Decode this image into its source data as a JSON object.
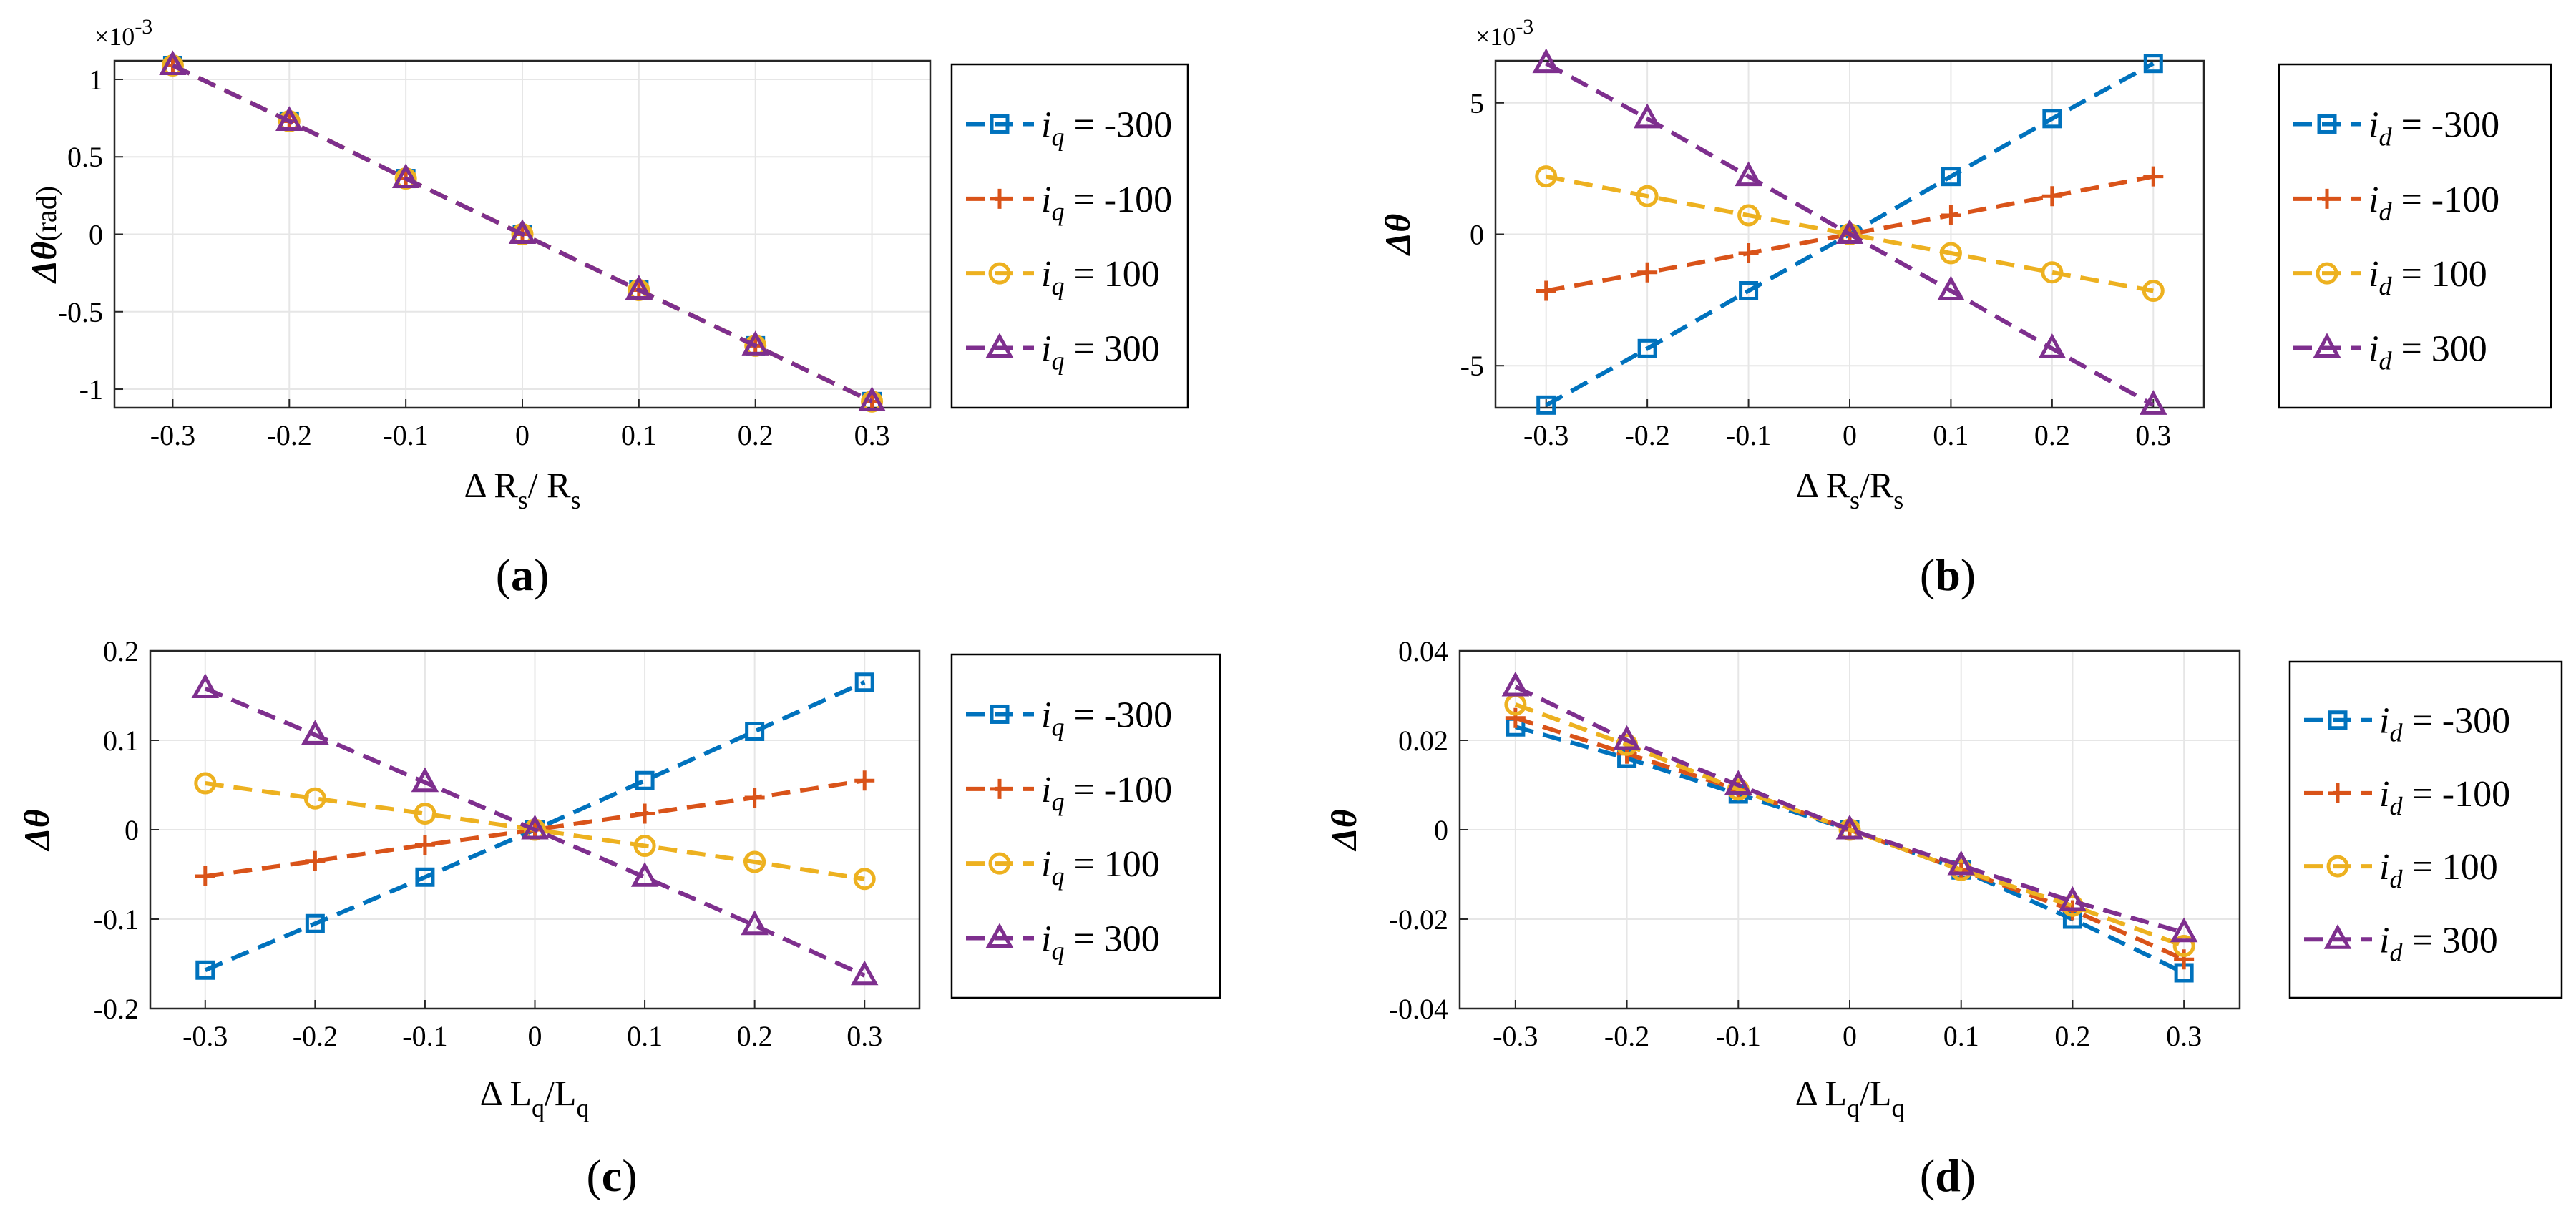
{
  "colors": {
    "blue": "#0072BD",
    "orange": "#D95319",
    "yellow": "#EDB120",
    "purple": "#7E2F8E",
    "grid": "#E6E6E6",
    "axis": "#262626"
  },
  "chart_data": [
    {
      "panel": "a",
      "caption_open": "(",
      "caption_letter": "a",
      "caption_close": ")",
      "type": "line",
      "x": [
        -0.3,
        -0.2,
        -0.1,
        0,
        0.1,
        0.2,
        0.3
      ],
      "xticks": [
        -0.3,
        -0.2,
        -0.1,
        0,
        0.1,
        0.2,
        0.3
      ],
      "xtick_labels": [
        "-0.3",
        "-0.2",
        "-0.1",
        "0",
        "0.1",
        "0.2",
        "0.3"
      ],
      "xlim": [
        -0.35,
        0.35
      ],
      "yticks": [
        -1,
        -0.5,
        0,
        0.5,
        1
      ],
      "ytick_labels": [
        "-1",
        "-0.5",
        "0",
        "0.5",
        "1"
      ],
      "ylim": [
        -1.12,
        1.12
      ],
      "exponent": "×10",
      "exponent_power": "-3",
      "ylabel": "Δθ",
      "ylabel_suffix": "(rad)",
      "xlabel_parts": [
        {
          "t": "Δ R"
        },
        {
          "t": "s",
          "sub": true
        },
        {
          "t": "/ R"
        },
        {
          "t": "s",
          "sub": true
        }
      ],
      "legend_var": "i",
      "legend_sub": "q",
      "series": [
        {
          "name": "i_q = -300",
          "value_label": "-300",
          "color": "blue",
          "marker": "square",
          "values": [
            1.09,
            0.73,
            0.36,
            0,
            -0.36,
            -0.72,
            -1.08
          ]
        },
        {
          "name": "i_q = -100",
          "value_label": "-100",
          "color": "orange",
          "marker": "plus",
          "values": [
            1.09,
            0.73,
            0.36,
            0,
            -0.36,
            -0.72,
            -1.08
          ]
        },
        {
          "name": "i_q = 100",
          "value_label": "100",
          "color": "yellow",
          "marker": "circle",
          "values": [
            1.09,
            0.73,
            0.36,
            0,
            -0.36,
            -0.72,
            -1.08
          ]
        },
        {
          "name": "i_q = 300",
          "value_label": "300",
          "color": "purple",
          "marker": "triangle",
          "values": [
            1.09,
            0.73,
            0.36,
            0,
            -0.36,
            -0.72,
            -1.08
          ]
        }
      ]
    },
    {
      "panel": "b",
      "caption_open": "(",
      "caption_letter": "b",
      "caption_close": ")",
      "type": "line",
      "x": [
        -0.3,
        -0.2,
        -0.1,
        0,
        0.1,
        0.2,
        0.3
      ],
      "xticks": [
        -0.3,
        -0.2,
        -0.1,
        0,
        0.1,
        0.2,
        0.3
      ],
      "xtick_labels": [
        "-0.3",
        "-0.2",
        "-0.1",
        "0",
        "0.1",
        "0.2",
        "0.3"
      ],
      "xlim": [
        -0.35,
        0.35
      ],
      "yticks": [
        -5,
        0,
        5
      ],
      "ytick_labels": [
        "-5",
        "0",
        "5"
      ],
      "ylim": [
        -6.6,
        6.6
      ],
      "exponent": "×10",
      "exponent_power": "-3",
      "ylabel": "Δθ",
      "ylabel_suffix": "",
      "xlabel_parts": [
        {
          "t": "Δ R"
        },
        {
          "t": "s",
          "sub": true
        },
        {
          "t": "/R"
        },
        {
          "t": "s",
          "sub": true
        }
      ],
      "legend_var": "i",
      "legend_sub": "d",
      "series": [
        {
          "name": "i_d = -300",
          "value_label": "-300",
          "color": "blue",
          "marker": "square",
          "values": [
            -6.5,
            -4.35,
            -2.15,
            0,
            2.2,
            4.4,
            6.5
          ]
        },
        {
          "name": "i_d = -100",
          "value_label": "-100",
          "color": "orange",
          "marker": "plus",
          "values": [
            -2.15,
            -1.45,
            -0.72,
            0,
            0.72,
            1.45,
            2.2
          ]
        },
        {
          "name": "i_d = 100",
          "value_label": "100",
          "color": "yellow",
          "marker": "circle",
          "values": [
            2.2,
            1.45,
            0.72,
            0,
            -0.72,
            -1.45,
            -2.15
          ]
        },
        {
          "name": "i_d = 300",
          "value_label": "300",
          "color": "purple",
          "marker": "triangle",
          "values": [
            6.5,
            4.4,
            2.2,
            0,
            -2.15,
            -4.35,
            -6.5
          ]
        }
      ]
    },
    {
      "panel": "c",
      "caption_open": "(",
      "caption_letter": "c",
      "caption_close": ")",
      "type": "line",
      "x": [
        -0.3,
        -0.2,
        -0.1,
        0,
        0.1,
        0.2,
        0.3
      ],
      "xticks": [
        -0.3,
        -0.2,
        -0.1,
        0,
        0.1,
        0.2,
        0.3
      ],
      "xtick_labels": [
        "-0.3",
        "-0.2",
        "-0.1",
        "0",
        "0.1",
        "0.2",
        "0.3"
      ],
      "xlim": [
        -0.35,
        0.35
      ],
      "yticks": [
        -0.2,
        -0.1,
        0,
        0.1,
        0.2
      ],
      "ytick_labels": [
        "-0.2",
        "-0.1",
        "0",
        "0.1",
        "0.2"
      ],
      "ylim": [
        -0.2,
        0.2
      ],
      "exponent": "",
      "exponent_power": "",
      "ylabel": "Δθ",
      "ylabel_suffix": "",
      "xlabel_parts": [
        {
          "t": "Δ L"
        },
        {
          "t": "q",
          "sub": true
        },
        {
          "t": "/L"
        },
        {
          "t": "q",
          "sub": true
        }
      ],
      "legend_var": "i",
      "legend_sub": "q",
      "series": [
        {
          "name": "i_q = -300",
          "value_label": "-300",
          "color": "blue",
          "marker": "square",
          "values": [
            -0.157,
            -0.105,
            -0.053,
            0,
            0.055,
            0.11,
            0.165
          ]
        },
        {
          "name": "i_q = -100",
          "value_label": "-100",
          "color": "orange",
          "marker": "plus",
          "values": [
            -0.052,
            -0.035,
            -0.017,
            0,
            0.018,
            0.036,
            0.055
          ]
        },
        {
          "name": "i_q = 100",
          "value_label": "100",
          "color": "yellow",
          "marker": "circle",
          "values": [
            0.052,
            0.035,
            0.018,
            0,
            -0.018,
            -0.036,
            -0.055
          ]
        },
        {
          "name": "i_q = 300",
          "value_label": "300",
          "color": "purple",
          "marker": "triangle",
          "values": [
            0.158,
            0.106,
            0.053,
            0,
            -0.053,
            -0.107,
            -0.163
          ]
        }
      ]
    },
    {
      "panel": "d",
      "caption_open": "(",
      "caption_letter": "d",
      "caption_close": ")",
      "type": "line",
      "x": [
        -0.3,
        -0.2,
        -0.1,
        0,
        0.1,
        0.2,
        0.3
      ],
      "xticks": [
        -0.3,
        -0.2,
        -0.1,
        0,
        0.1,
        0.2,
        0.3
      ],
      "xtick_labels": [
        "-0.3",
        "-0.2",
        "-0.1",
        "0",
        "0.1",
        "0.2",
        "0.3"
      ],
      "xlim": [
        -0.35,
        0.35
      ],
      "yticks": [
        -0.04,
        -0.02,
        0,
        0.02,
        0.04
      ],
      "ytick_labels": [
        "-0.04",
        "-0.02",
        "0",
        "0.02",
        "0.04"
      ],
      "ylim": [
        -0.04,
        0.04
      ],
      "exponent": "",
      "exponent_power": "",
      "ylabel": "Δθ",
      "ylabel_suffix": "",
      "xlabel_parts": [
        {
          "t": "Δ L"
        },
        {
          "t": "q",
          "sub": true
        },
        {
          "t": "/L"
        },
        {
          "t": "q",
          "sub": true
        }
      ],
      "legend_var": "i",
      "legend_sub": "d",
      "series": [
        {
          "name": "i_d = -300",
          "value_label": "-300",
          "color": "blue",
          "marker": "square",
          "values": [
            0.023,
            0.016,
            0.008,
            0,
            -0.009,
            -0.02,
            -0.032
          ]
        },
        {
          "name": "i_d = -100",
          "value_label": "-100",
          "color": "orange",
          "marker": "plus",
          "values": [
            0.025,
            0.017,
            0.009,
            0,
            -0.009,
            -0.018,
            -0.029
          ]
        },
        {
          "name": "i_d = 100",
          "value_label": "100",
          "color": "yellow",
          "marker": "circle",
          "values": [
            0.028,
            0.019,
            0.009,
            0,
            -0.009,
            -0.017,
            -0.026
          ]
        },
        {
          "name": "i_d = 300",
          "value_label": "300",
          "color": "purple",
          "marker": "triangle",
          "values": [
            0.032,
            0.02,
            0.01,
            0,
            -0.008,
            -0.016,
            -0.023
          ]
        }
      ]
    }
  ]
}
